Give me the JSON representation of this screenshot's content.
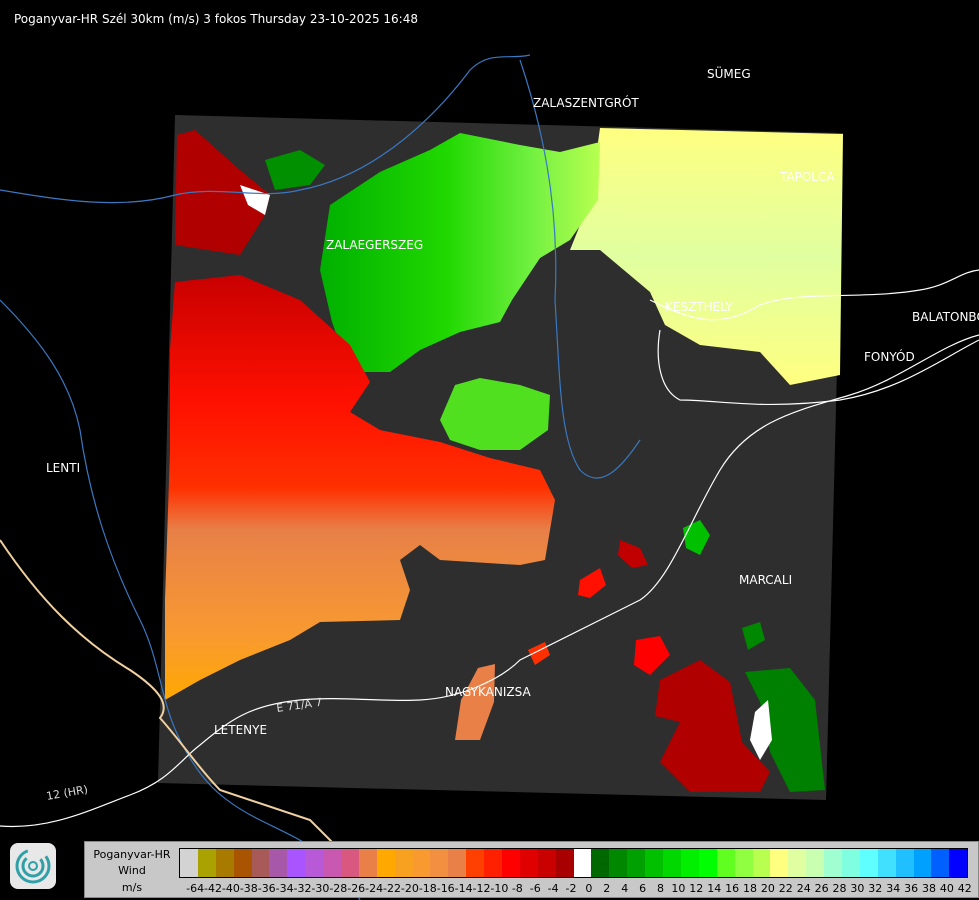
{
  "title": "Poganyvar-HR Szél 30km (m/s) 3 fokos Thursday 23-10-2025 16:48",
  "cities": [
    {
      "name": "SÜMEG"
    },
    {
      "name": "ZALASZENTGRÓT"
    },
    {
      "name": "TAPOLCA"
    },
    {
      "name": "ZALAEGERSZEG"
    },
    {
      "name": "KESZTHELY"
    },
    {
      "name": "BALATONBO"
    },
    {
      "name": "FONYÓD"
    },
    {
      "name": "LENTI"
    },
    {
      "name": "MARCALI"
    },
    {
      "name": "NAGYKANIZSA"
    },
    {
      "name": "LETENYE"
    }
  ],
  "road_labels": [
    "12 (HR)",
    "E 71/A 7"
  ],
  "legend": {
    "station": "Poganyvar-HR",
    "quantity": "Wind",
    "unit": "m/s",
    "logo_icon": "radar-swirl-logo",
    "labels": [
      "-64",
      "-42",
      "-40",
      "-38",
      "-36",
      "-34",
      "-32",
      "-30",
      "-28",
      "-26",
      "-24",
      "-22",
      "-20",
      "-18",
      "-16",
      "-14",
      "-12",
      "-10",
      "-8",
      "-6",
      "-4",
      "-2",
      "0",
      "2",
      "4",
      "6",
      "8",
      "10",
      "12",
      "14",
      "16",
      "18",
      "20",
      "22",
      "24",
      "26",
      "28",
      "30",
      "32",
      "34",
      "36",
      "38",
      "40",
      "42"
    ],
    "colors": [
      "#d3d3d3",
      "#aaa200",
      "#a87a00",
      "#a85400",
      "#a85a58",
      "#a858a8",
      "#a855ff",
      "#b85ad8",
      "#c858b0",
      "#d85880",
      "#e88048",
      "#ffa800",
      "#f8a020",
      "#f89a30",
      "#f09040",
      "#e88048",
      "#ff4000",
      "#ff2000",
      "#ff0000",
      "#e00000",
      "#c80000",
      "#a80000",
      "#ffffff",
      "#006800",
      "#008800",
      "#00a000",
      "#00c000",
      "#00d800",
      "#00f000",
      "#00ff00",
      "#60ff20",
      "#90ff40",
      "#b8ff50",
      "#ffff80",
      "#e0ffa0",
      "#c8ffb0",
      "#a0ffd0",
      "#80ffe0",
      "#60ffff",
      "#40e0ff",
      "#20c0ff",
      "#00a0ff",
      "#0060ff",
      "#0000ff"
    ]
  }
}
